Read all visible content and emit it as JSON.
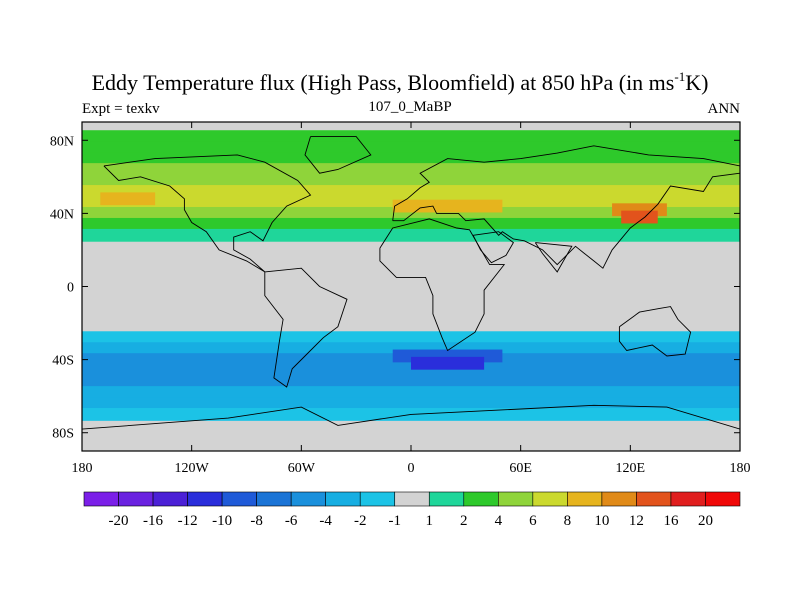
{
  "chart_data": {
    "type": "heatmap",
    "title": "Eddy Temperature flux (High Pass, Bloomfield) at 850 hPa (in ms",
    "title_sup": "-1",
    "title_end": "K)",
    "left_label": "Expt = texkv",
    "center_label": "107_0_MaBP",
    "right_label": "ANN",
    "x_range": [
      -180,
      180
    ],
    "y_range": [
      -90,
      90
    ],
    "x_ticks": [
      {
        "value": -180,
        "label": "180"
      },
      {
        "value": -120,
        "label": "120W"
      },
      {
        "value": -60,
        "label": "60W"
      },
      {
        "value": 0,
        "label": "0"
      },
      {
        "value": 60,
        "label": "60E"
      },
      {
        "value": 120,
        "label": "120E"
      },
      {
        "value": 180,
        "label": "180"
      }
    ],
    "y_ticks": [
      {
        "value": 80,
        "label": "80N"
      },
      {
        "value": 40,
        "label": "40N"
      },
      {
        "value": 0,
        "label": "0"
      },
      {
        "value": -40,
        "label": "40S"
      },
      {
        "value": -80,
        "label": "80S"
      }
    ],
    "colorbar": {
      "levels": [
        "-20",
        "-16",
        "-12",
        "-10",
        "-8",
        "-6",
        "-4",
        "-2",
        "-1",
        "1",
        "2",
        "4",
        "6",
        "8",
        "10",
        "12",
        "16",
        "20"
      ],
      "colors": [
        "#7b1fe8",
        "#6a22e0",
        "#4b20d6",
        "#2a2edb",
        "#1f5ad8",
        "#1b74d6",
        "#1a90dc",
        "#17aee2",
        "#1cc3e6",
        "#d3d3d3",
        "#1fd69a",
        "#2ec92b",
        "#8fd43a",
        "#cbd92e",
        "#e6b41e",
        "#e08a18",
        "#e2531c",
        "#e01e1e",
        "#f00808"
      ]
    },
    "field": [
      {
        "lat": 82,
        "lon": [
          -180,
          180
        ],
        "value": 2
      },
      {
        "lat": 76,
        "lon": [
          -180,
          180
        ],
        "value": 3
      },
      {
        "lat": 70,
        "lon": [
          -180,
          180
        ],
        "value": 3
      },
      {
        "lat": 64,
        "lon": [
          -180,
          180
        ],
        "value": 4
      },
      {
        "lat": 58,
        "lon": [
          -180,
          180
        ],
        "value": 5
      },
      {
        "lat": 52,
        "lon": [
          -180,
          180
        ],
        "value": 6
      },
      {
        "lat": 46,
        "lon": [
          -180,
          180
        ],
        "value": 6
      },
      {
        "lat": 40,
        "lon": [
          -180,
          180
        ],
        "value": 5
      },
      {
        "lat": 34,
        "lon": [
          -180,
          180
        ],
        "value": 3
      },
      {
        "lat": 28,
        "lon": [
          -180,
          180
        ],
        "value": 1.5
      },
      {
        "lat": 48,
        "lon": [
          -170,
          -140
        ],
        "value": 8
      },
      {
        "lat": 44,
        "lon": [
          -10,
          50
        ],
        "value": 8
      },
      {
        "lat": 42,
        "lon": [
          110,
          140
        ],
        "value": 10
      },
      {
        "lat": 38,
        "lon": [
          115,
          135
        ],
        "value": 12
      },
      {
        "lat": -28,
        "lon": [
          -180,
          180
        ],
        "value": -1.5
      },
      {
        "lat": -34,
        "lon": [
          -180,
          180
        ],
        "value": -3
      },
      {
        "lat": -40,
        "lon": [
          -180,
          180
        ],
        "value": -5
      },
      {
        "lat": -46,
        "lon": [
          -180,
          180
        ],
        "value": -6
      },
      {
        "lat": -52,
        "lon": [
          -180,
          180
        ],
        "value": -5
      },
      {
        "lat": -58,
        "lon": [
          -180,
          180
        ],
        "value": -4
      },
      {
        "lat": -64,
        "lon": [
          -180,
          180
        ],
        "value": -3
      },
      {
        "lat": -70,
        "lon": [
          -180,
          180
        ],
        "value": -1.5
      },
      {
        "lat": -38,
        "lon": [
          -10,
          50
        ],
        "value": -9
      },
      {
        "lat": -42,
        "lon": [
          0,
          40
        ],
        "value": -11
      }
    ],
    "grid": false
  }
}
